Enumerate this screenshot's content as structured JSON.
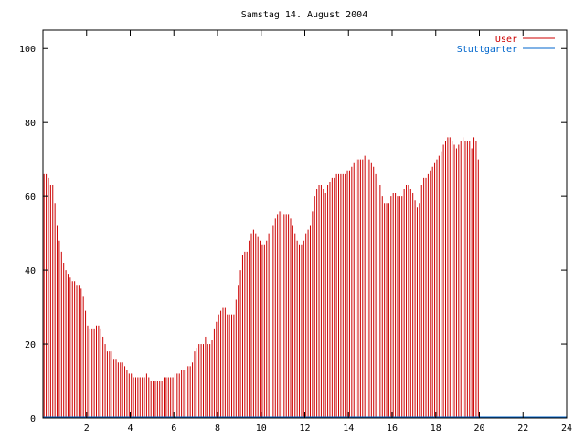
{
  "chart_data": {
    "type": "bar",
    "title": "Samstag 14. August 2004",
    "xlabel": "",
    "ylabel": "",
    "xlim": [
      0,
      24
    ],
    "ylim": [
      0,
      105
    ],
    "x_ticks": [
      "2",
      "4",
      "6",
      "8",
      "10",
      "12",
      "14",
      "16",
      "18",
      "20",
      "22",
      "24"
    ],
    "y_ticks": [
      "0",
      "20",
      "40",
      "60",
      "80",
      "100"
    ],
    "legend": "top-right",
    "grid": false,
    "series": [
      {
        "name": "User",
        "color": "#cc0000",
        "style": "impulses",
        "interval_hours": 0.1,
        "values": [
          66,
          66,
          65,
          63,
          63,
          58,
          52,
          48,
          45,
          42,
          40,
          39,
          38,
          37,
          37,
          36,
          36,
          35,
          33,
          29,
          25,
          24,
          24,
          24,
          25,
          25,
          24,
          22,
          20,
          18,
          18,
          18,
          16,
          16,
          15,
          15,
          15,
          14,
          13,
          12,
          12,
          11,
          11,
          11,
          11,
          11,
          11,
          12,
          11,
          10,
          10,
          10,
          10,
          10,
          10,
          11,
          11,
          11,
          11,
          11,
          12,
          12,
          12,
          13,
          13,
          13,
          14,
          14,
          15,
          18,
          19,
          20,
          20,
          20,
          22,
          20,
          20,
          21,
          24,
          26,
          28,
          29,
          30,
          30,
          28,
          28,
          28,
          28,
          32,
          36,
          40,
          44,
          45,
          45,
          48,
          50,
          51,
          50,
          49,
          48,
          47,
          47,
          48,
          50,
          51,
          52,
          54,
          55,
          56,
          56,
          55,
          55,
          55,
          54,
          52,
          50,
          48,
          47,
          47,
          48,
          50,
          51,
          52,
          56,
          60,
          62,
          63,
          63,
          62,
          61,
          63,
          64,
          65,
          65,
          66,
          66,
          66,
          66,
          66,
          67,
          67,
          68,
          69,
          70,
          70,
          70,
          70,
          71,
          70,
          70,
          69,
          68,
          66,
          65,
          63,
          60,
          58,
          58,
          58,
          60,
          61,
          61,
          60,
          60,
          60,
          62,
          63,
          63,
          62,
          61,
          59,
          57,
          58,
          63,
          65,
          65,
          66,
          67,
          68,
          69,
          70,
          71,
          72,
          74,
          75,
          76,
          76,
          75,
          74,
          73,
          74,
          75,
          76,
          75,
          75,
          75,
          73,
          76,
          75,
          70
        ]
      },
      {
        "name": "Stuttgarter",
        "color": "#0066cc",
        "style": "line",
        "x": [
          0,
          24
        ],
        "values": [
          0,
          0
        ]
      }
    ]
  }
}
